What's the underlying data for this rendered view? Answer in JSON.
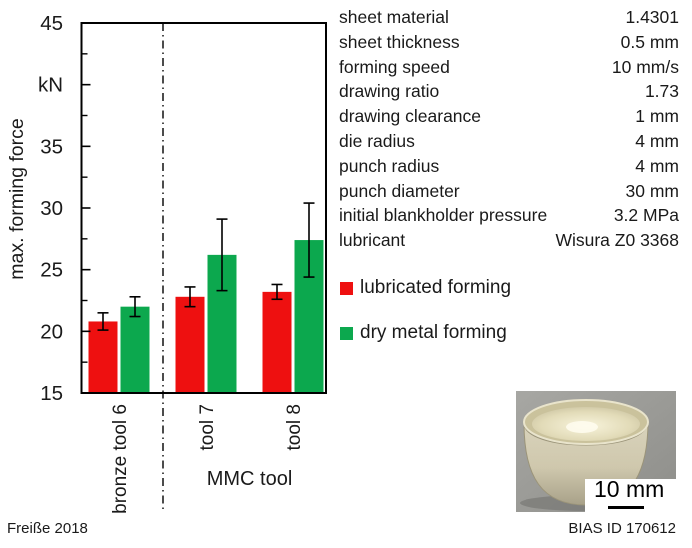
{
  "chart_data": {
    "type": "bar",
    "title": "",
    "ylabel": "max. forming force",
    "y_unit_label": "kN",
    "ylim": [
      15,
      45
    ],
    "yticks": [
      {
        "value": 15,
        "label": "15"
      },
      {
        "value": 20,
        "label": "20"
      },
      {
        "value": 25,
        "label": "25"
      },
      {
        "value": 30,
        "label": "30"
      },
      {
        "value": 35,
        "label": "35"
      },
      {
        "value": 40,
        "label": "kN"
      },
      {
        "value": 45,
        "label": "45"
      }
    ],
    "ytick_minor_step": 2.5,
    "grid": false,
    "categories": [
      "bronze tool 6",
      "tool 7",
      "tool 8"
    ],
    "x_group_label": "MMC tool",
    "x_group_categories": [
      "tool 7",
      "tool 8"
    ],
    "separator_after_category_index": 0,
    "separator_style": "dash-dot",
    "series": [
      {
        "name": "lubricated forming",
        "color": "#ee1010",
        "values": [
          20.8,
          22.8,
          23.2
        ],
        "errors": [
          0.7,
          0.8,
          0.6
        ]
      },
      {
        "name": "dry metal forming",
        "color": "#0ca84e",
        "values": [
          22.0,
          26.2,
          27.4
        ],
        "errors": [
          0.8,
          2.9,
          3.0
        ]
      }
    ],
    "legend_position": "right"
  },
  "parameters": [
    {
      "label": "sheet material",
      "value": "1.4301"
    },
    {
      "label": "sheet thickness",
      "value": "0.5 mm"
    },
    {
      "label": "forming speed",
      "value": "10 mm/s"
    },
    {
      "label": "drawing ratio",
      "value": "1.73"
    },
    {
      "label": "drawing clearance",
      "value": "1 mm"
    },
    {
      "label": "die radius",
      "value": "4 mm"
    },
    {
      "label": "punch radius",
      "value": "4 mm"
    },
    {
      "label": "punch diameter",
      "value": "30 mm"
    },
    {
      "label": "initial blankholder pressure",
      "value": "3.2 MPa"
    },
    {
      "label": "lubricant",
      "value": "Wisura Z0 3368"
    }
  ],
  "photo": {
    "description": "deep-drawn metal cup on gray surface",
    "scale_label": "10 mm",
    "caption": "BIAS ID 170612"
  },
  "footer": {
    "credit": "Freiße 2018"
  }
}
